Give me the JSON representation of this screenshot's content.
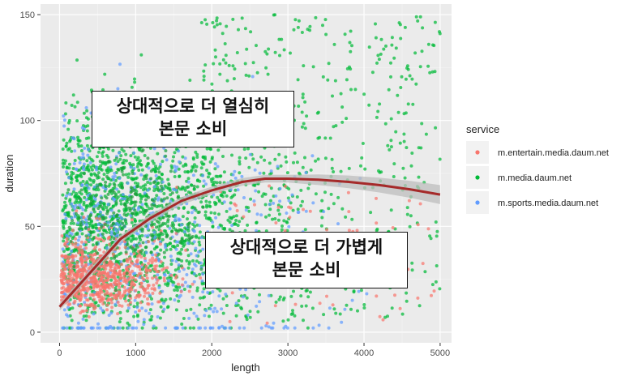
{
  "chart_data": {
    "type": "scatter",
    "xlabel": "length",
    "ylabel": "duration",
    "xlim": [
      -250,
      5150
    ],
    "ylim": [
      -5,
      155
    ],
    "x_ticks": [
      0,
      1000,
      2000,
      3000,
      4000,
      5000
    ],
    "y_ticks": [
      0,
      50,
      100,
      150
    ],
    "grid": true,
    "background": "#ebebeb",
    "legend": {
      "title": "service",
      "placement": "right",
      "entries": [
        {
          "name": "m.entertain.media.daum.net",
          "color": "#f8766d"
        },
        {
          "name": "m.media.daum.net",
          "color": "#00ba38"
        },
        {
          "name": "m.sports.media.daum.net",
          "color": "#619cff"
        }
      ]
    },
    "series": [
      {
        "name": "m.entertain.media.daum.net",
        "color": "#f8766d",
        "distribution": "dense cluster near x 0–1500, y 0–40, sparse out to x 5000"
      },
      {
        "name": "m.media.daum.net",
        "color": "#00ba38",
        "distribution": "dense mass x 0–2500, y 10–120, scattered up to y 150 and x 5000"
      },
      {
        "name": "m.sports.media.daum.net",
        "color": "#619cff",
        "distribution": "mixed within x 0–4500, y 0–150"
      }
    ],
    "trend": {
      "color": "#a52a2a",
      "band_color": "#bdbdbd",
      "x": [
        0,
        400,
        800,
        1200,
        1600,
        2000,
        2400,
        2700,
        3000,
        3400,
        3800,
        4200,
        4600,
        5000
      ],
      "y": [
        12,
        28,
        44,
        54,
        62,
        67,
        71,
        72.5,
        72.5,
        72,
        71,
        69.5,
        67.5,
        65
      ]
    },
    "annotations": [
      {
        "lines": [
          "상대적으로 더 열심히",
          "본문 소비"
        ]
      },
      {
        "lines": [
          "상대적으로 더 가볍게",
          "본문 소비"
        ]
      }
    ]
  }
}
